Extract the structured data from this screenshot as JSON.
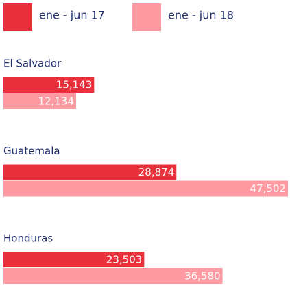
{
  "chart_data": {
    "type": "bar",
    "orientation": "horizontal",
    "categories": [
      "El Salvador",
      "Guatemala",
      "Honduras"
    ],
    "series": [
      {
        "name": "ene - jun 17",
        "color": "#e8303a",
        "values": [
          15143,
          28874,
          23503
        ],
        "value_labels": [
          "15,143",
          "28,874",
          "23,503"
        ]
      },
      {
        "name": "ene - jun 18",
        "color": "#ff9aa2",
        "values": [
          12134,
          47502,
          36580
        ],
        "value_labels": [
          "12,134",
          "47,502",
          "36,580"
        ]
      }
    ],
    "legend": "top-left"
  }
}
